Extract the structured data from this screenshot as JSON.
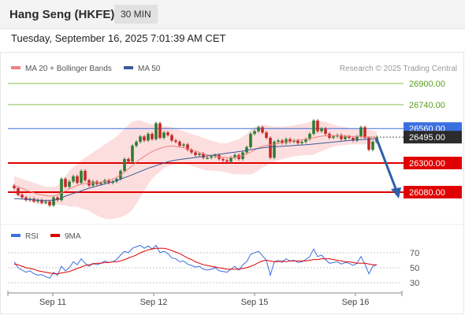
{
  "header": {
    "title": "Hang Seng (HKFE)",
    "timeframe": "30 MIN"
  },
  "datetime": "Tuesday, September 16, 2025 7:01:39 AM CET",
  "colors": {
    "ma20": "#f08080",
    "ma50": "#3a5a9a",
    "resistance": "#8bc34a",
    "pivot": "#3b6fe0",
    "support": "#e00000",
    "arrow": "#2e5fa8",
    "candle_up": "#2e7d32",
    "candle_down": "#c62828"
  },
  "chart_data": [
    {
      "type": "candlestick",
      "legend": [
        {
          "label": "MA 20 + Bollinger Bands",
          "color": "#f08080"
        },
        {
          "label": "MA 50",
          "color": "#3a5a9a"
        }
      ],
      "source_note": "Research © 2025 Trading Central",
      "ylim": [
        25950,
        26980
      ],
      "x_labels": [
        "Sep 11",
        "Sep 12",
        "Sep 15",
        "Sep 16"
      ],
      "levels": [
        {
          "value": 26900,
          "label": "26900.00",
          "kind": "resistance"
        },
        {
          "value": 26740,
          "label": "26740.00",
          "kind": "resistance"
        },
        {
          "value": 26560,
          "label": "26560.00",
          "kind": "pivot"
        },
        {
          "value": 26495,
          "label": "26495.00",
          "kind": "last"
        },
        {
          "value": 26300,
          "label": "26300.00",
          "kind": "support"
        },
        {
          "value": 26080,
          "label": "26080.00",
          "kind": "support"
        }
      ],
      "close": [
        26110,
        26060,
        26040,
        26020,
        26030,
        26010,
        26020,
        26000,
        26010,
        25980,
        26040,
        26020,
        26180,
        26120,
        26160,
        26200,
        26150,
        26240,
        26170,
        26130,
        26160,
        26140,
        26150,
        26170,
        26150,
        26160,
        26180,
        26240,
        26330,
        26310,
        26430,
        26460,
        26500,
        26470,
        26520,
        26480,
        26600,
        26490,
        26530,
        26510,
        26470,
        26460,
        26430,
        26440,
        26400,
        26380,
        26360,
        26370,
        26340,
        26340,
        26350,
        26360,
        26330,
        26320,
        26310,
        26340,
        26360,
        26330,
        26380,
        26420,
        26520,
        26540,
        26570,
        26530,
        26490,
        26340,
        26460,
        26470,
        26450,
        26480,
        26460,
        26470,
        26450,
        26460,
        26480,
        26520,
        26620,
        26540,
        26560,
        26520,
        26490,
        26500,
        26510,
        26480,
        26500,
        26490,
        26470,
        26500,
        26570,
        26490,
        26400,
        26460,
        26495
      ],
      "ma20": [
        26130,
        26120,
        26110,
        26095,
        26085,
        26075,
        26065,
        26060,
        26055,
        26050,
        26052,
        26058,
        26075,
        26090,
        26105,
        26120,
        26130,
        26140,
        26145,
        26150,
        26150,
        26152,
        26155,
        26160,
        26168,
        26178,
        26192,
        26210,
        26232,
        26255,
        26280,
        26305,
        26330,
        26350,
        26370,
        26385,
        26400,
        26410,
        26420,
        26425,
        26428,
        26425,
        26420,
        26415,
        26408,
        26400,
        26390,
        26380,
        26370,
        26362,
        26356,
        26350,
        26345,
        26342,
        26340,
        26340,
        26342,
        26348,
        26356,
        26368,
        26382,
        26398,
        26412,
        26425,
        26432,
        26438,
        26442,
        26448,
        26452,
        26458,
        26462,
        26468,
        26472,
        26476,
        26480,
        26485,
        26492,
        26498,
        26502,
        26505,
        26506,
        26506,
        26505,
        26504,
        26503,
        26502,
        26500,
        26500,
        26500,
        26498,
        26495,
        26494,
        26493
      ],
      "bb_upper": [
        26200,
        26190,
        26180,
        26170,
        26160,
        26150,
        26140,
        26130,
        26120,
        26120,
        26120,
        26130,
        26170,
        26200,
        26240,
        26270,
        26290,
        26320,
        26340,
        26360,
        26380,
        26400,
        26420,
        26440,
        26460,
        26480,
        26500,
        26530,
        26560,
        26590,
        26610,
        26620,
        26620,
        26610,
        26600,
        26590,
        26590,
        26585,
        26580,
        26575,
        26570,
        26560,
        26550,
        26540,
        26530,
        26520,
        26510,
        26500,
        26490,
        26480,
        26470,
        26460,
        26450,
        26450,
        26450,
        26460,
        26470,
        26480,
        26500,
        26520,
        26550,
        26570,
        26580,
        26585,
        26585,
        26580,
        26575,
        26575,
        26575,
        26578,
        26580,
        26585,
        26590,
        26595,
        26600,
        26610,
        26620,
        26620,
        26615,
        26610,
        26600,
        26590,
        26580,
        26575,
        26570,
        26565,
        26560,
        26560,
        26560,
        26555,
        26550,
        26545,
        26540
      ],
      "bb_lower": [
        26060,
        26050,
        26040,
        26020,
        26010,
        26000,
        25990,
        25990,
        25990,
        25980,
        25985,
        25986,
        25980,
        25980,
        25970,
        25970,
        25970,
        25960,
        25950,
        25940,
        25920,
        25904,
        25890,
        25880,
        25876,
        25876,
        25884,
        25890,
        25904,
        25920,
        25950,
        25990,
        26040,
        26090,
        26140,
        26180,
        26210,
        26235,
        26260,
        26275,
        26286,
        26290,
        26290,
        26290,
        26286,
        26280,
        26270,
        26260,
        26250,
        26244,
        26242,
        26240,
        26240,
        26234,
        26230,
        26220,
        26214,
        26216,
        26212,
        26216,
        26214,
        26226,
        26244,
        26265,
        26279,
        26296,
        26309,
        26321,
        26329,
        26338,
        26344,
        26351,
        26354,
        26357,
        26360,
        26360,
        26364,
        26376,
        26389,
        26400,
        26412,
        26422,
        26430,
        26433,
        26436,
        26439,
        26440,
        26440,
        26440,
        26441,
        26440,
        26443,
        26446
      ],
      "ma50": [
        26030,
        26030,
        26028,
        26026,
        26024,
        26022,
        26020,
        26018,
        26018,
        26018,
        26020,
        26025,
        26035,
        26050,
        26060,
        26070,
        26080,
        26090,
        26100,
        26110,
        26118,
        26126,
        26134,
        26142,
        26150,
        26158,
        26168,
        26178,
        26190,
        26200,
        26212,
        26224,
        26236,
        26248,
        26260,
        26270,
        26280,
        26290,
        26300,
        26310,
        26316,
        26322,
        26326,
        26330,
        26334,
        26338,
        26342,
        26346,
        26350,
        26354,
        26358,
        26362,
        26366,
        26370,
        26374,
        26378,
        26382,
        26386,
        26390,
        26395,
        26400,
        26405,
        26410,
        26414,
        26418,
        26420,
        26422,
        26424,
        26426,
        26428,
        26430,
        26432,
        26434,
        26436,
        26438,
        26440,
        26443,
        26446,
        26449,
        26452,
        26455,
        26458,
        26461,
        26464,
        26467,
        26470,
        26472,
        26474,
        26476,
        26478,
        26480,
        26482,
        26484
      ]
    },
    {
      "type": "line",
      "legend": [
        {
          "label": "RSI",
          "color": "#3b6fe0"
        },
        {
          "label": "9MA",
          "color": "#e00000"
        }
      ],
      "ylim": [
        20,
        80
      ],
      "ticks": [
        {
          "value": 70,
          "label": "70"
        },
        {
          "value": 50,
          "label": "50"
        },
        {
          "value": 30,
          "label": "30"
        }
      ],
      "rsi": [
        58,
        50,
        47,
        44,
        46,
        42,
        40,
        41,
        38,
        36,
        44,
        40,
        52,
        46,
        50,
        58,
        54,
        62,
        56,
        52,
        56,
        54,
        56,
        59,
        57,
        58,
        61,
        67,
        72,
        70,
        76,
        78,
        80,
        76,
        79,
        75,
        80,
        70,
        72,
        69,
        63,
        62,
        58,
        59,
        55,
        53,
        51,
        52,
        48,
        47,
        48,
        50,
        46,
        45,
        44,
        48,
        52,
        47,
        54,
        58,
        68,
        70,
        72,
        66,
        60,
        40,
        58,
        60,
        57,
        62,
        59,
        60,
        57,
        58,
        61,
        65,
        75,
        65,
        67,
        61,
        56,
        57,
        58,
        55,
        57,
        56,
        53,
        56,
        65,
        55,
        42,
        52,
        54
      ],
      "ma9": [
        55,
        54,
        52,
        50,
        49,
        48,
        46,
        45,
        44,
        43,
        42,
        42,
        43,
        44,
        45,
        47,
        49,
        51,
        53,
        54,
        55,
        56,
        56,
        57,
        57,
        58,
        58,
        59,
        61,
        63,
        65,
        67,
        70,
        72,
        74,
        75,
        76,
        76,
        76,
        75,
        73,
        71,
        69,
        66,
        63,
        61,
        58,
        56,
        54,
        53,
        52,
        51,
        50,
        49,
        48,
        48,
        48,
        48,
        49,
        50,
        52,
        54,
        57,
        59,
        60,
        59,
        58,
        58,
        59,
        58,
        59,
        59,
        59,
        59,
        59,
        60,
        61,
        61,
        62,
        62,
        62,
        61,
        60,
        59,
        58,
        58,
        57,
        56,
        56,
        56,
        55,
        54,
        54
      ]
    }
  ]
}
